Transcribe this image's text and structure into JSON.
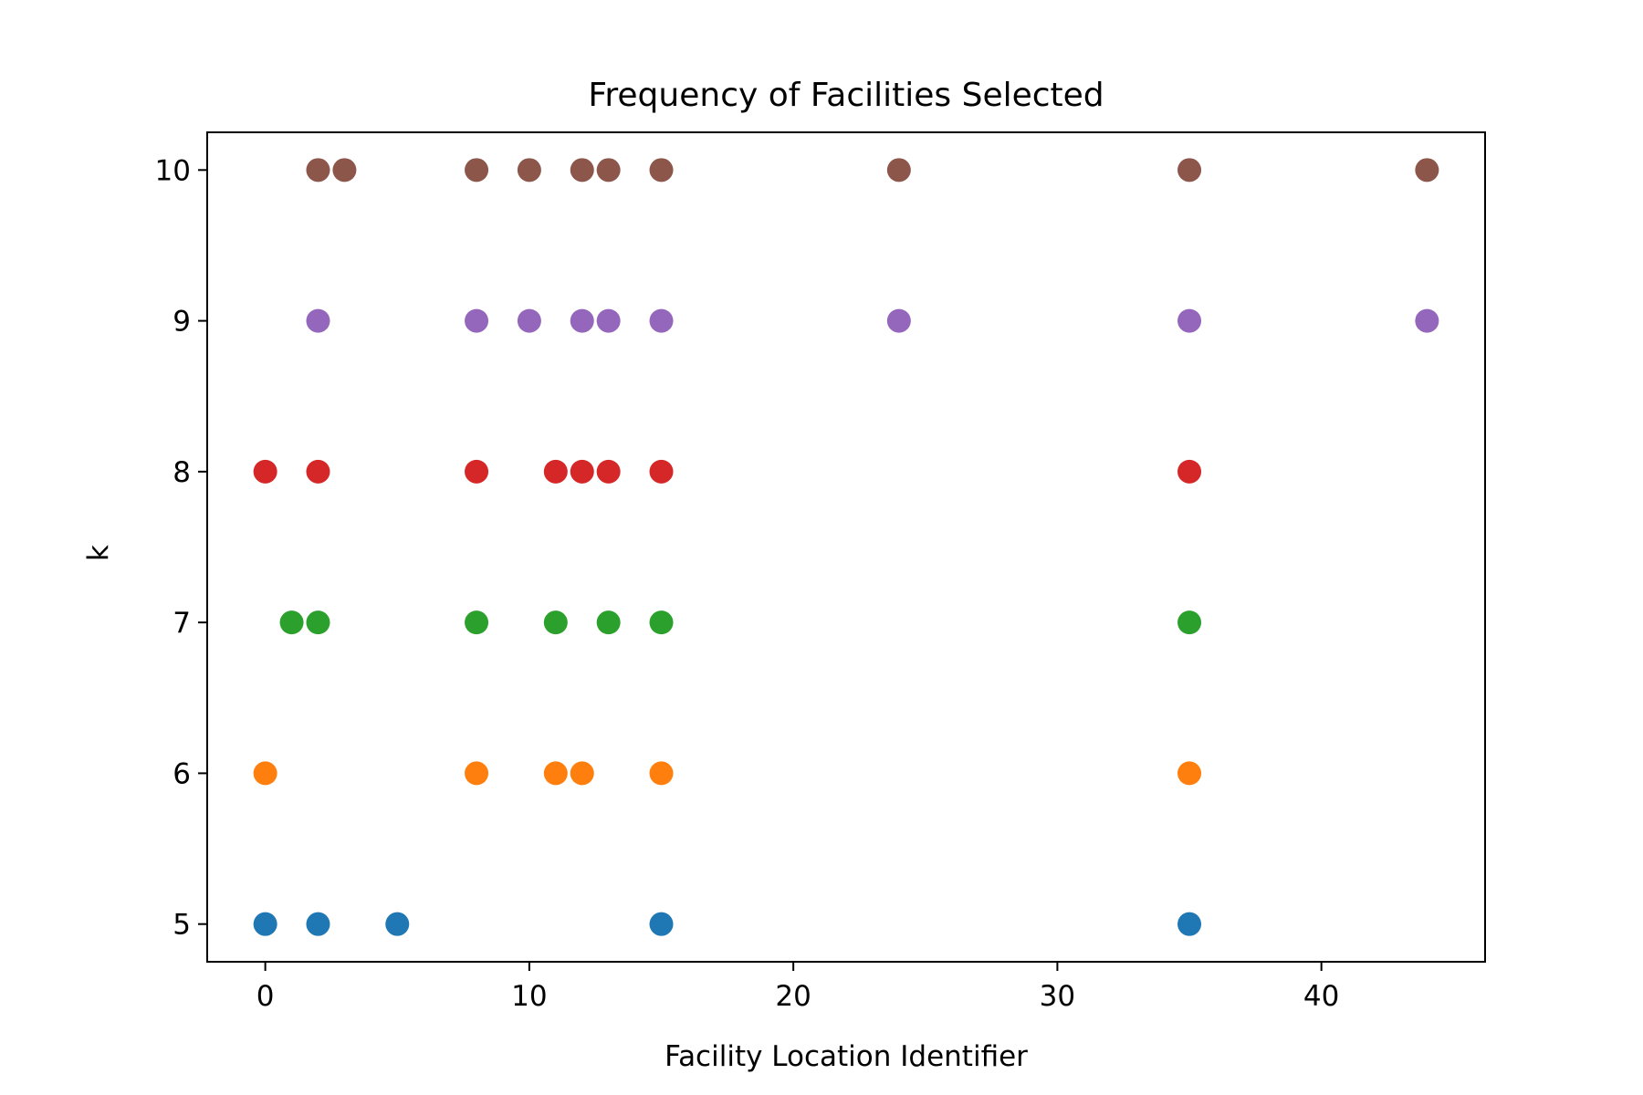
{
  "chart_data": {
    "type": "scatter",
    "title": "Frequency of Facilities Selected",
    "xlabel": "Facility Location Identifier",
    "ylabel": "k",
    "xlim": [
      -2.2,
      46.2
    ],
    "ylim": [
      4.75,
      10.25
    ],
    "xticks": [
      0,
      10,
      20,
      30,
      40
    ],
    "yticks": [
      5,
      6,
      7,
      8,
      9,
      10
    ],
    "grid": false,
    "legend": "none",
    "series": [
      {
        "color": "#1f77b4",
        "points": [
          [
            0,
            5
          ],
          [
            2,
            5
          ],
          [
            5,
            5
          ],
          [
            15,
            5
          ],
          [
            35,
            5
          ]
        ]
      },
      {
        "color": "#ff7f0e",
        "points": [
          [
            0,
            6
          ],
          [
            8,
            6
          ],
          [
            11,
            6
          ],
          [
            12,
            6
          ],
          [
            15,
            6
          ],
          [
            35,
            6
          ]
        ]
      },
      {
        "color": "#2ca02c",
        "points": [
          [
            1,
            7
          ],
          [
            2,
            7
          ],
          [
            8,
            7
          ],
          [
            11,
            7
          ],
          [
            13,
            7
          ],
          [
            15,
            7
          ],
          [
            35,
            7
          ]
        ]
      },
      {
        "color": "#d62728",
        "points": [
          [
            0,
            8
          ],
          [
            2,
            8
          ],
          [
            8,
            8
          ],
          [
            11,
            8
          ],
          [
            12,
            8
          ],
          [
            13,
            8
          ],
          [
            15,
            8
          ],
          [
            35,
            8
          ]
        ]
      },
      {
        "color": "#9467bd",
        "points": [
          [
            2,
            9
          ],
          [
            8,
            9
          ],
          [
            10,
            9
          ],
          [
            12,
            9
          ],
          [
            13,
            9
          ],
          [
            15,
            9
          ],
          [
            24,
            9
          ],
          [
            35,
            9
          ],
          [
            44,
            9
          ]
        ]
      },
      {
        "color": "#8c564b",
        "points": [
          [
            2,
            10
          ],
          [
            3,
            10
          ],
          [
            8,
            10
          ],
          [
            10,
            10
          ],
          [
            12,
            10
          ],
          [
            13,
            10
          ],
          [
            15,
            10
          ],
          [
            24,
            10
          ],
          [
            35,
            10
          ],
          [
            44,
            10
          ]
        ]
      }
    ]
  }
}
